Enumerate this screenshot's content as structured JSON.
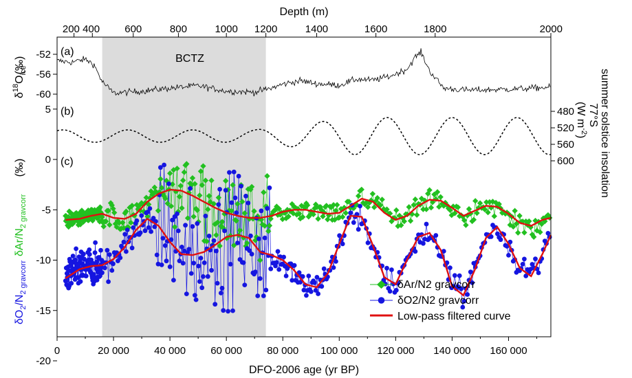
{
  "chart_data": {
    "type": "line",
    "xlabel": "DFO-2006 age (yr BP)",
    "x_top_label": "Depth (m)",
    "xlim": [
      0,
      175000
    ],
    "x_ticks": [
      0,
      20000,
      40000,
      60000,
      80000,
      100000,
      120000,
      140000,
      160000
    ],
    "x_tick_labels": [
      "0",
      "20 000",
      "40 000",
      "60 000",
      "80 000",
      "100 000",
      "120 000",
      "140 000",
      "160 000"
    ],
    "top_ticks": [
      {
        "label": "200",
        "age": 6000
      },
      {
        "label": "400",
        "age": 12500
      },
      {
        "label": "600",
        "age": 27000
      },
      {
        "label": "800",
        "age": 43000
      },
      {
        "label": "1000",
        "age": 60000
      },
      {
        "label": "1200",
        "age": 74000
      },
      {
        "label": "1400",
        "age": 92000
      },
      {
        "label": "1600",
        "age": 113000
      },
      {
        "label": "1800",
        "age": 134000
      },
      {
        "label": "2000",
        "age": 175000
      }
    ],
    "top_tick_label_first": "200 400",
    "shaded_region": {
      "label": "BCTZ",
      "x_start": 16000,
      "x_end": 74000
    },
    "panels": [
      {
        "id": "(a)",
        "ylabel_main": "δ",
        "ylabel_sup": "18",
        "ylabel_o": "O",
        "ylabel_sub": "ice",
        "unit": "(‰)",
        "ticks": [
          "-52",
          "-56",
          "-60"
        ]
      },
      {
        "id": "(b)",
        "ylabel_right_1": "77°S",
        "ylabel_right_2": "summer solstice insolation",
        "ylabel_right_3": "(W m",
        "ylabel_right_sup": "-2",
        "ylabel_right_end": ")",
        "ticks_right": [
          "480",
          "520",
          "560",
          "600"
        ]
      },
      {
        "id": "(c)",
        "ylabel_ar": "δAr/N",
        "ylabel_ar_sub": "2 gravcorr",
        "ylabel_o2": "δO",
        "ylabel_o2_sub1": "2",
        "ylabel_o2_mid": "/N",
        "ylabel_o2_sub2": "2 gravcorr",
        "unit": "(‰)",
        "ticks": [
          "5",
          "0",
          "-5",
          "-10",
          "-15",
          "-20"
        ],
        "ylim": [
          -22,
          7
        ]
      }
    ],
    "series": [
      {
        "name": "δAr/N2 gravcorr",
        "color": "#22c020",
        "marker": "diamond"
      },
      {
        "name": "δO2/N2 gravcorr",
        "color": "#1515e0",
        "marker": "circle"
      },
      {
        "name": "Low-pass filtered curve",
        "color": "#e01010",
        "marker": "line"
      }
    ],
    "filtered_ar": {
      "x": [
        3000,
        8000,
        12000,
        16000,
        20000,
        24000,
        28000,
        32000,
        36000,
        40000,
        44000,
        48000,
        52000,
        56000,
        60000,
        64000,
        68000,
        72000,
        76000,
        80000,
        84000,
        88000,
        92000,
        96000,
        100000,
        104000,
        108000,
        112000,
        116000,
        120000,
        124000,
        128000,
        132000,
        136000,
        140000,
        144000,
        148000,
        152000,
        156000,
        160000,
        164000,
        168000,
        172000,
        175000
      ],
      "y": [
        -6.0,
        -5.9,
        -5.6,
        -5.4,
        -5.8,
        -5.9,
        -5.4,
        -4.2,
        -3.4,
        -3.0,
        -3.1,
        -3.6,
        -4.2,
        -4.8,
        -5.3,
        -5.6,
        -5.8,
        -5.8,
        -5.6,
        -5.2,
        -5.0,
        -5.0,
        -5.2,
        -5.4,
        -5.3,
        -4.6,
        -3.9,
        -4.2,
        -5.3,
        -6.0,
        -5.6,
        -4.6,
        -4.0,
        -4.1,
        -4.8,
        -5.6,
        -5.1,
        -4.6,
        -4.7,
        -5.4,
        -6.3,
        -6.6,
        -6.0,
        -5.8
      ]
    },
    "filtered_o2": {
      "x": [
        3000,
        8000,
        12000,
        16000,
        20000,
        24000,
        28000,
        32000,
        36000,
        40000,
        44000,
        48000,
        52000,
        56000,
        60000,
        64000,
        68000,
        72000,
        76000,
        80000,
        84000,
        88000,
        92000,
        96000,
        100000,
        104000,
        108000,
        112000,
        116000,
        120000,
        124000,
        128000,
        132000,
        136000,
        140000,
        144000,
        148000,
        152000,
        156000,
        160000,
        164000,
        168000,
        172000,
        175000
      ],
      "y": [
        -11.8,
        -10.9,
        -10.6,
        -10.5,
        -9.9,
        -8.7,
        -7.0,
        -5.9,
        -6.6,
        -8.2,
        -9.4,
        -9.5,
        -9.2,
        -8.5,
        -7.7,
        -7.5,
        -7.8,
        -9.2,
        -9.5,
        -10.0,
        -11.0,
        -12.4,
        -12.7,
        -11.3,
        -8.4,
        -5.6,
        -5.7,
        -8.6,
        -11.7,
        -12.4,
        -10.0,
        -7.7,
        -7.3,
        -9.0,
        -12.6,
        -13.5,
        -11.0,
        -7.8,
        -6.7,
        -8.4,
        -10.8,
        -11.6,
        -9.4,
        -7.5
      ]
    }
  }
}
